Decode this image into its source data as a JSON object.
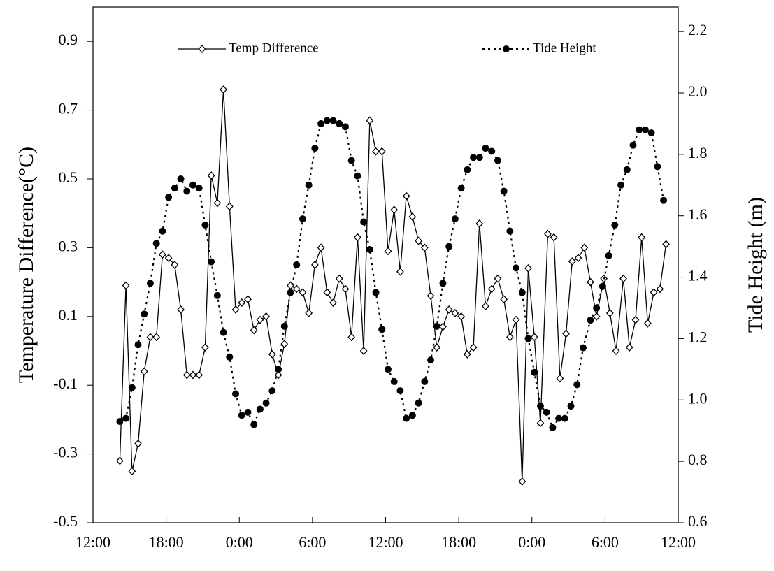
{
  "chart_data": {
    "type": "line",
    "y_label": "Temperature Difference(°C)",
    "y2_label": "Tide Height (m)",
    "xlim": [
      0,
      48
    ],
    "xticks": [
      {
        "value": 0,
        "label": "12:00"
      },
      {
        "value": 6,
        "label": "18:00"
      },
      {
        "value": 12,
        "label": "0:00"
      },
      {
        "value": 18,
        "label": "6:00"
      },
      {
        "value": 24,
        "label": "12:00"
      },
      {
        "value": 30,
        "label": "18:00"
      },
      {
        "value": 36,
        "label": "0:00"
      },
      {
        "value": 42,
        "label": "6:00"
      },
      {
        "value": 48,
        "label": "12:00"
      }
    ],
    "ylim": [
      -0.5,
      1.0
    ],
    "yticks": [
      -0.5,
      -0.3,
      -0.1,
      0.1,
      0.3,
      0.5,
      0.7,
      0.9
    ],
    "y2lim": [
      0.6,
      2.28
    ],
    "y2ticks": [
      0.6,
      0.8,
      {
        "value": 1,
        "label": "1.0"
      },
      1.2,
      1.4,
      1.6,
      1.8,
      {
        "value": 2,
        "label": "2.0"
      },
      2.2
    ],
    "legend": "top",
    "series": [
      {
        "name": "Temp Difference",
        "color": "#000000",
        "marker": "open-diamond",
        "line": "solid",
        "x": [
          2.2,
          2.7,
          3.2,
          3.7,
          4.2,
          4.7,
          5.2,
          5.7,
          6.2,
          6.7,
          7.2,
          7.7,
          8.2,
          8.7,
          9.2,
          9.7,
          10.2,
          10.7,
          11.2,
          11.7,
          12.2,
          12.7,
          13.2,
          13.7,
          14.2,
          14.7,
          15.2,
          15.7,
          16.2,
          16.7,
          17.2,
          17.7,
          18.2,
          18.7,
          19.2,
          19.7,
          20.2,
          20.7,
          21.2,
          21.7,
          22.2,
          22.7,
          23.2,
          23.7,
          24.2,
          24.7,
          25.2,
          25.7,
          26.2,
          26.7,
          27.2,
          27.7,
          28.2,
          28.7,
          29.2,
          29.7,
          30.2,
          30.7,
          31.2,
          31.7,
          32.2,
          32.7,
          33.2,
          33.7,
          34.2,
          34.7,
          35.2,
          35.7,
          36.2,
          36.7,
          37.3,
          37.8,
          38.3,
          38.8,
          39.3,
          39.8,
          40.3,
          40.8,
          41.3,
          41.9,
          42.4,
          42.9,
          43.5,
          44.0,
          44.5,
          45.0,
          45.5,
          46.0,
          46.5,
          47.0
        ],
        "values": [
          -0.32,
          0.19,
          -0.35,
          -0.27,
          -0.06,
          0.04,
          0.04,
          0.28,
          0.27,
          0.25,
          0.12,
          -0.07,
          -0.07,
          -0.07,
          0.01,
          0.51,
          0.43,
          0.76,
          0.42,
          0.12,
          0.14,
          0.15,
          0.06,
          0.09,
          0.1,
          -0.01,
          -0.07,
          0.02,
          0.19,
          0.18,
          0.17,
          0.11,
          0.25,
          0.3,
          0.17,
          0.14,
          0.21,
          0.18,
          0.04,
          0.33,
          0.0,
          0.67,
          0.58,
          0.58,
          0.29,
          0.41,
          0.23,
          0.45,
          0.39,
          0.32,
          0.3,
          0.16,
          0.01,
          0.07,
          0.12,
          0.11,
          0.1,
          -0.01,
          0.01,
          0.37,
          0.13,
          0.18,
          0.21,
          0.15,
          0.04,
          0.09,
          -0.38,
          0.24,
          0.04,
          -0.21,
          0.34,
          0.33,
          -0.08,
          0.05,
          0.26,
          0.27,
          0.3,
          0.2,
          0.1,
          0.21,
          0.11,
          0.0,
          0.21,
          0.01,
          0.09,
          0.33,
          0.08,
          0.17,
          0.18,
          0.31
        ]
      },
      {
        "name": "Tide Height",
        "color": "#000000",
        "marker": "filled-circle",
        "line": "dotted",
        "axis": "y2",
        "x": [
          2.2,
          2.7,
          3.2,
          3.7,
          4.2,
          4.7,
          5.2,
          5.7,
          6.2,
          6.7,
          7.2,
          7.7,
          8.2,
          8.7,
          9.2,
          9.7,
          10.2,
          10.7,
          11.2,
          11.7,
          12.2,
          12.7,
          13.2,
          13.7,
          14.2,
          14.7,
          15.2,
          15.7,
          16.2,
          16.7,
          17.2,
          17.7,
          18.2,
          18.7,
          19.2,
          19.7,
          20.2,
          20.7,
          21.2,
          21.7,
          22.2,
          22.7,
          23.2,
          23.7,
          24.2,
          24.7,
          25.2,
          25.7,
          26.2,
          26.7,
          27.2,
          27.7,
          28.2,
          28.7,
          29.2,
          29.7,
          30.2,
          30.7,
          31.2,
          31.7,
          32.2,
          32.7,
          33.2,
          33.7,
          34.2,
          34.7,
          35.2,
          35.7,
          36.2,
          36.7,
          37.2,
          37.7,
          38.2,
          38.7,
          39.2,
          39.7,
          40.2,
          40.8,
          41.3,
          41.8,
          42.3,
          42.8,
          43.3,
          43.8,
          44.3,
          44.8,
          45.3,
          45.8,
          46.3,
          46.8
        ],
        "values": [
          0.93,
          0.94,
          1.04,
          1.18,
          1.28,
          1.38,
          1.51,
          1.55,
          1.66,
          1.69,
          1.72,
          1.68,
          1.7,
          1.69,
          1.57,
          1.45,
          1.34,
          1.22,
          1.14,
          1.02,
          0.95,
          0.96,
          0.92,
          0.97,
          0.99,
          1.03,
          1.1,
          1.24,
          1.35,
          1.44,
          1.59,
          1.7,
          1.82,
          1.9,
          1.91,
          1.91,
          1.9,
          1.89,
          1.78,
          1.73,
          1.58,
          1.49,
          1.35,
          1.23,
          1.1,
          1.06,
          1.03,
          0.94,
          0.95,
          0.99,
          1.06,
          1.13,
          1.24,
          1.38,
          1.5,
          1.59,
          1.69,
          1.75,
          1.79,
          1.79,
          1.82,
          1.81,
          1.78,
          1.68,
          1.55,
          1.43,
          1.35,
          1.2,
          1.09,
          0.98,
          0.96,
          0.91,
          0.94,
          0.94,
          0.98,
          1.05,
          1.17,
          1.26,
          1.3,
          1.37,
          1.47,
          1.57,
          1.7,
          1.75,
          1.83,
          1.88,
          1.88,
          1.87,
          1.76,
          1.65
        ]
      }
    ]
  }
}
